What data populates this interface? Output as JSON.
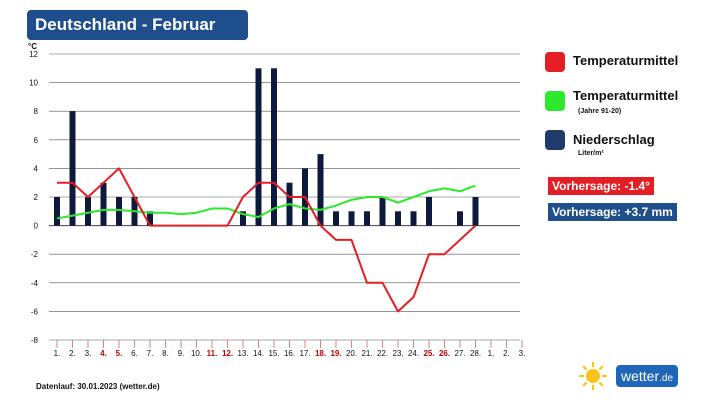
{
  "title": "Deutschland - Februar",
  "unit": "°C",
  "legend": [
    {
      "label": "Temperaturmittel",
      "sub": "",
      "color": "#e31e24"
    },
    {
      "label": "Temperaturmittel",
      "sub": "(Jahre 91-20)",
      "color": "#2ee82e"
    },
    {
      "label": "Niederschlag",
      "sub": "Liter/m²",
      "color": "#1f3a6b"
    }
  ],
  "forecast": {
    "temp_label": "Vorhersage: -1.4°",
    "temp_color": "#e31e24",
    "precip_label": "Vorhersage: +3.7 mm",
    "precip_color": "#1f4e8c"
  },
  "footer": "Datenlauf: 30.01.2023 (wetter.de)",
  "logo": {
    "name": "wetter",
    "tld": ".de",
    "icon": "sun-icon"
  },
  "chart_data": {
    "type": "bar+line",
    "ylim": [
      -8,
      12
    ],
    "yticks": [
      -8,
      -6,
      -4,
      -2,
      0,
      2,
      4,
      6,
      8,
      10,
      12
    ],
    "x_labels": [
      "1.",
      "2.",
      "3.",
      "4.",
      "5.",
      "6.",
      "7.",
      "8.",
      "9.",
      "10.",
      "11.",
      "12.",
      "13.",
      "14.",
      "15.",
      "16.",
      "17.",
      "18.",
      "19.",
      "20.",
      "21.",
      "22.",
      "23.",
      "24.",
      "25.",
      "26.",
      "27.",
      "28.",
      "1.",
      "2.",
      "3."
    ],
    "x_label_colors": [
      "#111",
      "#111",
      "#111",
      "#c00000",
      "#c00000",
      "#111",
      "#111",
      "#111",
      "#111",
      "#111",
      "#c00000",
      "#c00000",
      "#111",
      "#111",
      "#111",
      "#111",
      "#111",
      "#c00000",
      "#c00000",
      "#111",
      "#111",
      "#111",
      "#111",
      "#111",
      "#c00000",
      "#c00000",
      "#111",
      "#111",
      "#111",
      "#111",
      "#111"
    ],
    "series": [
      {
        "name": "Niederschlag",
        "kind": "bar",
        "color": "#0e1a3d",
        "values": [
          2,
          8,
          2,
          3,
          2,
          2,
          1,
          0,
          0,
          0,
          0,
          0,
          1,
          11,
          11,
          3,
          4,
          5,
          1,
          1,
          1,
          2,
          1,
          1,
          2,
          0,
          1,
          2
        ]
      },
      {
        "name": "Temperaturmittel",
        "kind": "line",
        "color": "#e31e24",
        "values": [
          3,
          3,
          2,
          3,
          4,
          2,
          0,
          0,
          0,
          0,
          0,
          0,
          2,
          3,
          3,
          2,
          2,
          0,
          -1,
          -1,
          -4,
          -4,
          -6,
          -5,
          -2,
          -2,
          -1,
          0
        ]
      },
      {
        "name": "Temperaturmittel (Jahre 91-20)",
        "kind": "line",
        "color": "#2ee82e",
        "values": [
          0.5,
          0.7,
          0.9,
          1.1,
          1.1,
          1.0,
          0.9,
          0.9,
          0.8,
          0.9,
          1.2,
          1.2,
          0.8,
          0.6,
          1.2,
          1.5,
          1.2,
          1.1,
          1.4,
          1.8,
          2.0,
          2.0,
          1.6,
          2.0,
          2.4,
          2.6,
          2.4,
          2.8
        ]
      }
    ]
  }
}
